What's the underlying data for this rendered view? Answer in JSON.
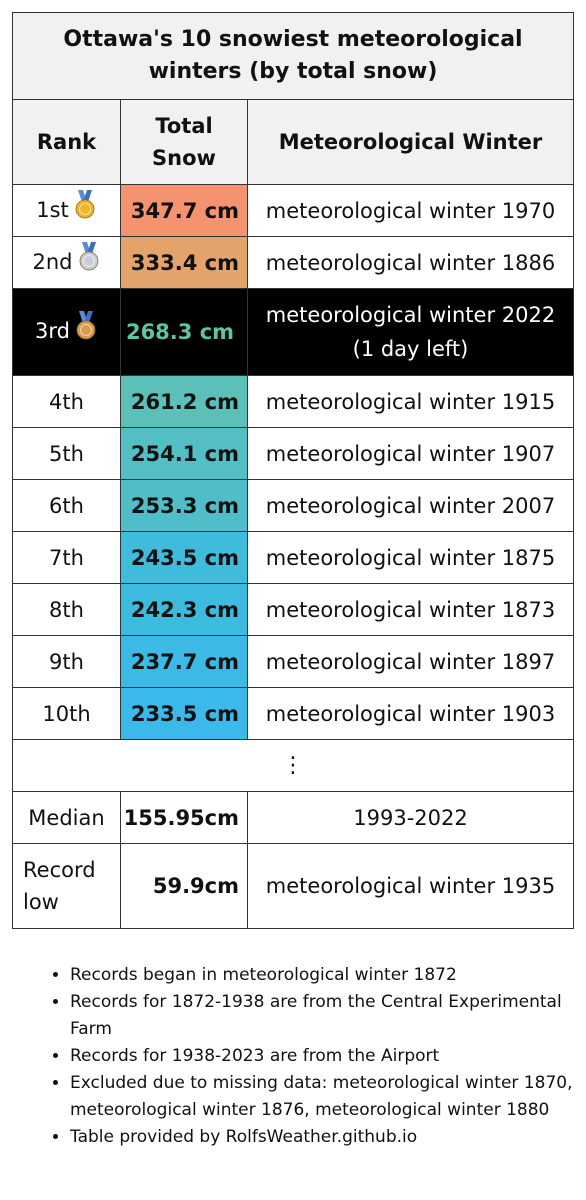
{
  "title": "Ottawa's 10 snowiest meteorological winters (by total snow)",
  "columns": [
    "Rank",
    "Total Snow",
    "Meteorological Winter"
  ],
  "rows": [
    {
      "rank": "1st",
      "medal": "gold",
      "snow": "347.7 cm",
      "winter": "meteorological winter 1970",
      "color": "#f5926f"
    },
    {
      "rank": "2nd",
      "medal": "silver",
      "snow": "333.4 cm",
      "winter": "meteorological winter 1886",
      "color": "#e5a36c"
    },
    {
      "rank": "3rd",
      "medal": "bronze",
      "snow": "268.3 cm",
      "winter": "meteorological winter 2022",
      "winter_note": "(1 day left)",
      "current": true
    },
    {
      "rank": "4th",
      "snow": "261.2 cm",
      "winter": "meteorological winter 1915",
      "color": "#5cc0b9"
    },
    {
      "rank": "5th",
      "snow": "254.1 cm",
      "winter": "meteorological winter 1907",
      "color": "#53bfc4"
    },
    {
      "rank": "6th",
      "snow": "253.3 cm",
      "winter": "meteorological winter 2007",
      "color": "#4fbec9"
    },
    {
      "rank": "7th",
      "snow": "243.5 cm",
      "winter": "meteorological winter 1875",
      "color": "#3fbbdc"
    },
    {
      "rank": "8th",
      "snow": "242.3 cm",
      "winter": "meteorological winter 1873",
      "color": "#3dbbde"
    },
    {
      "rank": "9th",
      "snow": "237.7 cm",
      "winter": "meteorological winter 1897",
      "color": "#3cbae5"
    },
    {
      "rank": "10th",
      "snow": "233.5 cm",
      "winter": "meteorological winter 1903",
      "color": "#3bb9ea"
    }
  ],
  "ellipsis": "⋮",
  "median": {
    "label": "Median",
    "snow": "155.95cm",
    "winter": "1993-2022"
  },
  "record_low": {
    "label_line1": "Record",
    "label_line2": "low",
    "snow": "59.9cm",
    "winter": "meteorological winter 1935"
  },
  "notes": [
    "Records began in meteorological winter 1872",
    "Records for 1872-1938 are from the Central Experimental Farm",
    "Records for 1938-2023 are from the Airport",
    "Excluded due to missing data: meteorological winter 1870, meteorological winter 1876, meteorological winter 1880",
    "Table provided by RolfsWeather.github.io"
  ],
  "medal_colors": {
    "gold": "#f0b429",
    "silver": "#c9ced6",
    "bronze": "#d89a4b",
    "ribbon": "#5b8bd6"
  }
}
